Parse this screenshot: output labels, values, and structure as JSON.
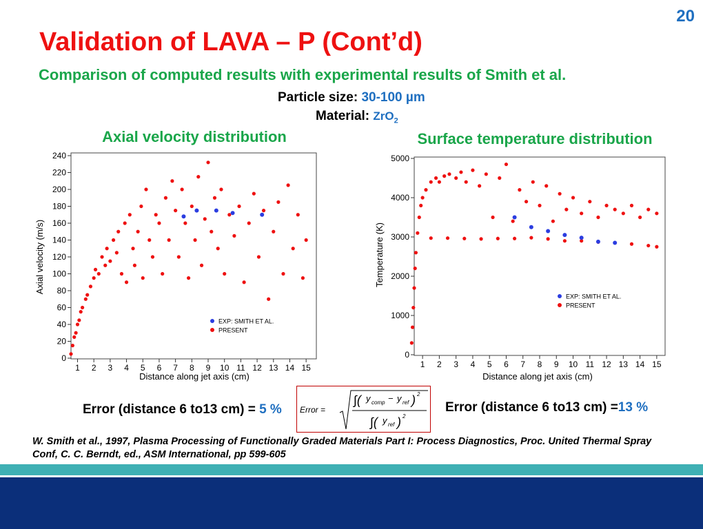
{
  "slide": {
    "page_number": "20",
    "title": "Validation of LAVA – P (Cont’d)",
    "subtitle": "Comparison of computed results with experimental results of Smith et al.",
    "particle_size_label": "Particle size:",
    "particle_size_value": "30-100 µm",
    "material_label": "Material:",
    "material_value": "ZrO",
    "material_subscript": "2",
    "error_left_label": "Error (distance 6 to13 cm) =",
    "error_left_value": "5 %",
    "error_right_label": "Error (distance 6 to13 cm) =",
    "error_right_value": "13 %",
    "formula": {
      "lhs": "Error =",
      "variable": "y",
      "sub_comp": "comp",
      "sub_ref": "ref",
      "power": "2"
    },
    "reference": "W. Smith et al., 1997, Plasma Processing of Functionally Graded Materials Part I: Process Diagnostics, Proc. United Thermal Spray Conf, C. C. Berndt, ed., ASM International, pp 599-605"
  },
  "chart_data": [
    {
      "type": "scatter",
      "title": "Axial velocity distribution",
      "xlabel": "Distance along jet axis (cm)",
      "ylabel": "Axial velocity (m/s)",
      "xlim": [
        0.6,
        15.5
      ],
      "ylim": [
        0,
        240
      ],
      "xticks": [
        1,
        2,
        3,
        4,
        5,
        6,
        7,
        8,
        9,
        10,
        11,
        12,
        13,
        14,
        15
      ],
      "yticks": [
        0,
        20,
        40,
        60,
        80,
        100,
        120,
        140,
        160,
        180,
        200,
        220,
        240
      ],
      "series": [
        {
          "name": "EXP: SMITH ET AL.",
          "color": "#2b3de0",
          "x": [
            7.5,
            8.3,
            9.5,
            10.5,
            12.3
          ],
          "values": [
            168,
            175,
            175,
            172,
            170
          ]
        },
        {
          "name": "PRESENT",
          "color": "#ee1111",
          "x": [
            0.6,
            0.7,
            0.8,
            0.9,
            1.0,
            1.1,
            1.2,
            1.3,
            1.5,
            1.6,
            1.8,
            2.0,
            2.1,
            2.3,
            2.5,
            2.7,
            2.8,
            3.0,
            3.2,
            3.4,
            3.5,
            3.7,
            3.9,
            4.0,
            4.2,
            4.4,
            4.5,
            4.7,
            4.9,
            5.0,
            5.2,
            5.4,
            5.6,
            5.8,
            6.0,
            6.2,
            6.4,
            6.6,
            6.8,
            7.0,
            7.2,
            7.4,
            7.6,
            7.8,
            8.0,
            8.2,
            8.4,
            8.6,
            8.8,
            9.0,
            9.2,
            9.4,
            9.6,
            9.8,
            10.0,
            10.3,
            10.6,
            10.9,
            11.2,
            11.5,
            11.8,
            12.1,
            12.4,
            12.7,
            13.0,
            13.3,
            13.6,
            13.9,
            14.2,
            14.5,
            14.8,
            15.0
          ],
          "values": [
            5,
            15,
            25,
            30,
            40,
            45,
            55,
            60,
            70,
            75,
            85,
            95,
            105,
            100,
            120,
            110,
            130,
            115,
            140,
            125,
            150,
            100,
            160,
            90,
            170,
            130,
            110,
            150,
            180,
            95,
            200,
            140,
            120,
            170,
            160,
            100,
            190,
            140,
            210,
            175,
            120,
            200,
            160,
            95,
            180,
            140,
            215,
            110,
            165,
            232,
            150,
            190,
            130,
            200,
            100,
            170,
            145,
            180,
            90,
            160,
            195,
            120,
            175,
            70,
            150,
            185,
            100,
            205,
            130,
            170,
            95,
            140
          ]
        }
      ]
    },
    {
      "type": "scatter",
      "title": "Surface temperature distribution",
      "xlabel": "Distance along jet axis (cm)",
      "ylabel": "Temperature (K)",
      "xlim": [
        0.5,
        15.5
      ],
      "ylim": [
        0,
        5000
      ],
      "xticks": [
        1,
        2,
        3,
        4,
        5,
        6,
        7,
        8,
        9,
        10,
        11,
        12,
        13,
        14,
        15
      ],
      "yticks": [
        0,
        1000,
        2000,
        3000,
        4000,
        5000
      ],
      "series": [
        {
          "name": "EXP: SMITH ET AL.",
          "color": "#2b3de0",
          "x": [
            6.5,
            7.5,
            8.5,
            9.5,
            10.5,
            11.5,
            12.5
          ],
          "values": [
            3500,
            3250,
            3150,
            3050,
            2980,
            2880,
            2850
          ]
        },
        {
          "name": "PRESENT",
          "color": "#ee1111",
          "x": [
            0.35,
            0.4,
            0.45,
            0.5,
            0.55,
            0.6,
            0.7,
            0.8,
            0.9,
            1.0,
            1.2,
            1.5,
            1.8,
            2.0,
            2.3,
            2.6,
            3.0,
            3.3,
            3.6,
            4.0,
            4.4,
            4.8,
            5.2,
            5.6,
            6.0,
            6.4,
            6.8,
            7.2,
            7.6,
            8.0,
            8.4,
            8.8,
            9.2,
            9.6,
            10.0,
            10.5,
            11.0,
            11.5,
            12.0,
            12.5,
            13.0,
            13.5,
            14.0,
            14.5,
            15.0,
            1.5,
            2.5,
            3.5,
            4.5,
            5.5,
            6.5,
            7.5,
            8.5,
            9.5,
            10.5,
            11.5,
            12.5,
            13.5,
            14.5,
            15.0
          ],
          "values": [
            300,
            700,
            1200,
            1700,
            2200,
            2600,
            3100,
            3500,
            3800,
            4000,
            4200,
            4400,
            4500,
            4400,
            4550,
            4600,
            4500,
            4650,
            4400,
            4700,
            4300,
            4600,
            3500,
            4500,
            4850,
            3400,
            4200,
            3900,
            4400,
            3800,
            4300,
            3400,
            4100,
            3700,
            4000,
            3600,
            3900,
            3500,
            3800,
            3700,
            3600,
            3800,
            3500,
            3700,
            3600,
            2970,
            2970,
            2960,
            2950,
            2960,
            2960,
            2980,
            2950,
            2900,
            2900,
            2870,
            2850,
            2820,
            2780,
            2750
          ]
        }
      ]
    }
  ]
}
